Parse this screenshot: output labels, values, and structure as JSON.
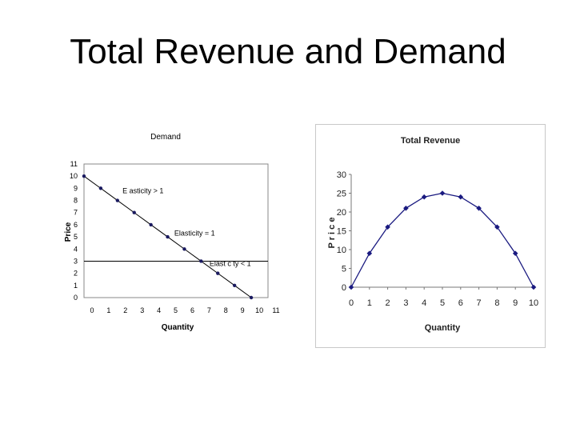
{
  "slide": {
    "title": "Total Revenue and Demand"
  },
  "chart_data": [
    {
      "type": "line",
      "title": "Demand",
      "xlabel": "Quantity",
      "ylabel": "Price",
      "x_ticks": [
        "0",
        "1",
        "2",
        "3",
        "4",
        "5",
        "6",
        "7",
        "8",
        "9",
        "10",
        "11"
      ],
      "y_ticks": [
        "0",
        "1",
        "2",
        "3",
        "4",
        "5",
        "6",
        "7",
        "8",
        "9",
        "10",
        "11"
      ],
      "xlim": [
        0,
        11
      ],
      "ylim": [
        0,
        11
      ],
      "grid": false,
      "series": [
        {
          "x": [
            0,
            1,
            2,
            3,
            4,
            5,
            6,
            7,
            8,
            9,
            10
          ],
          "y": [
            10,
            9,
            8,
            7,
            6,
            5,
            4,
            3,
            2,
            1,
            0
          ]
        }
      ],
      "reference_line": {
        "y": 3
      },
      "annotations": [
        {
          "text": "E asticity > 1",
          "x": 2.3,
          "y": 8.6
        },
        {
          "text": "Elasticity = 1",
          "x": 5.4,
          "y": 5.1
        },
        {
          "text": "Elast c ty < 1",
          "x": 7.5,
          "y": 2.6
        }
      ],
      "colors": {
        "line": "#000000",
        "marker": "#1a1a60"
      }
    },
    {
      "type": "line",
      "title": "Total Revenue",
      "xlabel": "Quantity",
      "ylabel": "P r i c e",
      "x_ticks": [
        "0",
        "1",
        "2",
        "3",
        "4",
        "5",
        "6",
        "7",
        "8",
        "9",
        "10"
      ],
      "y_ticks": [
        "0",
        "5",
        "10",
        "15",
        "20",
        "25",
        "30"
      ],
      "xlim": [
        0,
        10
      ],
      "ylim": [
        0,
        30
      ],
      "grid": false,
      "series": [
        {
          "x": [
            0,
            1,
            2,
            3,
            4,
            5,
            6,
            7,
            8,
            9,
            10
          ],
          "y": [
            0,
            9,
            16,
            21,
            24,
            25,
            24,
            21,
            16,
            9,
            0
          ]
        }
      ],
      "colors": {
        "line": "#1a1a80",
        "marker": "#1a1a80"
      }
    }
  ]
}
